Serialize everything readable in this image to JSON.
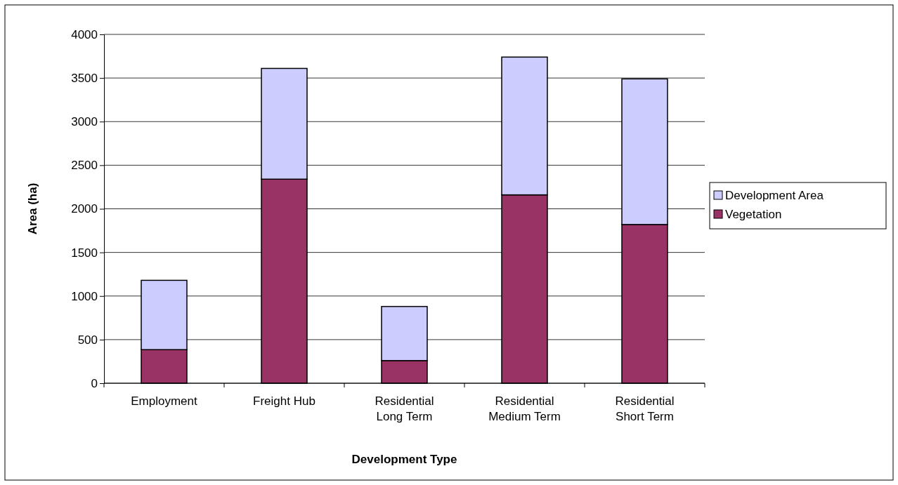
{
  "chart_data": {
    "type": "bar",
    "stacked": true,
    "xlabel": "Development Type",
    "ylabel": "Area (ha)",
    "categories": [
      "Employment",
      "Freight Hub",
      "Residential Long Term",
      "Residential Medium Term",
      "Residential Short Term"
    ],
    "series": [
      {
        "name": "Vegetation",
        "color": "#993366",
        "values": [
          385,
          2340,
          260,
          2160,
          1820
        ]
      },
      {
        "name": "Development Area",
        "color": "#ccccff",
        "values": [
          795,
          1270,
          620,
          1580,
          1670
        ]
      }
    ],
    "ylim": [
      0,
      4000
    ],
    "yticks": [
      0,
      500,
      1000,
      1500,
      2000,
      2500,
      3000,
      3500,
      4000
    ],
    "grid": "y",
    "legend": "right"
  }
}
